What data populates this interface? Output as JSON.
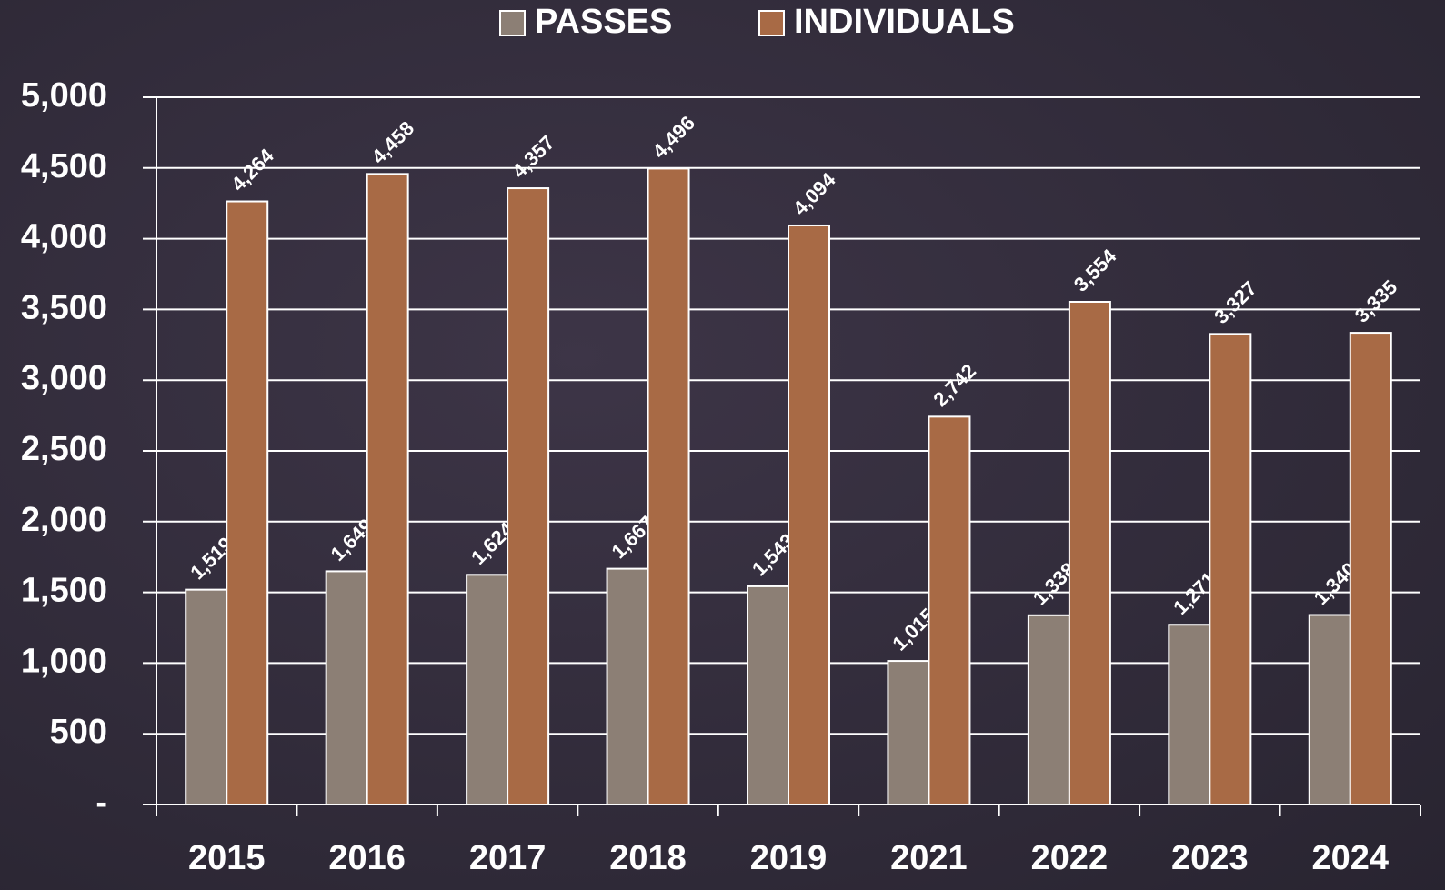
{
  "chart_data": {
    "type": "bar",
    "categories": [
      "2015",
      "2016",
      "2017",
      "2018",
      "2019",
      "2021",
      "2022",
      "2023",
      "2024"
    ],
    "series": [
      {
        "name": "PASSES",
        "color": "#8c7f75",
        "values": [
          1519,
          1649,
          1624,
          1667,
          1543,
          1015,
          1338,
          1271,
          1340
        ],
        "value_labels": [
          "1,519",
          "1,649",
          "1,624",
          "1,667",
          "1,543",
          "1,015",
          "1,338",
          "1,271",
          "1,340"
        ]
      },
      {
        "name": "INDIVIDUALS",
        "color": "#a86a45",
        "values": [
          4264,
          4458,
          4357,
          4496,
          4094,
          2742,
          3554,
          3327,
          3335
        ],
        "value_labels": [
          "4,264",
          "4,458",
          "4,357",
          "4,496",
          "4,094",
          "2,742",
          "3,554",
          "3,327",
          "3,335"
        ]
      }
    ],
    "ylim": [
      0,
      5000
    ],
    "yticks": [
      {
        "value": 0,
        "label": "-"
      },
      500,
      {
        "value": 1000,
        "label": "1,000"
      },
      {
        "value": 1500,
        "label": "1,500"
      },
      {
        "value": 2000,
        "label": "2,000"
      },
      {
        "value": 2500,
        "label": "2,500"
      },
      {
        "value": 3000,
        "label": "3,000"
      },
      {
        "value": 3500,
        "label": "3,500"
      },
      {
        "value": 4000,
        "label": "4,000"
      },
      {
        "value": 4500,
        "label": "4,500"
      },
      {
        "value": 5000,
        "label": "5,000"
      }
    ],
    "grid": true,
    "legend": "top"
  }
}
